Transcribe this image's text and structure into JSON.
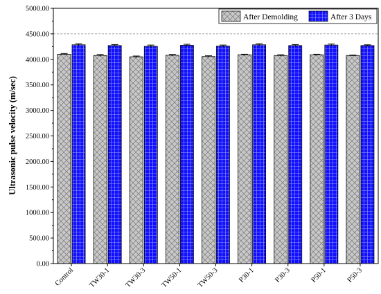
{
  "chart_data": {
    "type": "bar",
    "title": "",
    "xlabel": "",
    "ylabel": "Ultrasonic pulse velocity (m/sec)",
    "ylim": [
      0,
      5000
    ],
    "yticks": [
      0,
      500,
      1000,
      1500,
      2000,
      2500,
      3000,
      3500,
      4000,
      4500,
      5000
    ],
    "ytick_labels": [
      "0.00",
      "500.00",
      "1000.00",
      "1500.00",
      "2000.00",
      "2500.00",
      "3000.00",
      "3500.00",
      "4000.00",
      "4500.00",
      "5000.00"
    ],
    "grid": "dashed horizontal line at 4500",
    "legend_position": "top-right",
    "categories": [
      "Control",
      "TW30-1",
      "TW30-3",
      "TW50-1",
      "TW50-3",
      "P30-1",
      "P30-3",
      "P50-1",
      "P50-3"
    ],
    "series": [
      {
        "name": "After Demolding",
        "color": "#c8c8c8",
        "pattern": "crosshatch",
        "values": [
          4100,
          4075,
          4050,
          4080,
          4055,
          4090,
          4075,
          4090,
          4075
        ],
        "errors": [
          15,
          20,
          15,
          15,
          15,
          10,
          15,
          10,
          10
        ]
      },
      {
        "name": "After 3 Days",
        "color": "#1010ff",
        "pattern": "grid",
        "values": [
          4285,
          4270,
          4255,
          4275,
          4260,
          4285,
          4270,
          4280,
          4270
        ],
        "errors": [
          20,
          20,
          25,
          20,
          20,
          20,
          20,
          20,
          15
        ]
      }
    ]
  }
}
